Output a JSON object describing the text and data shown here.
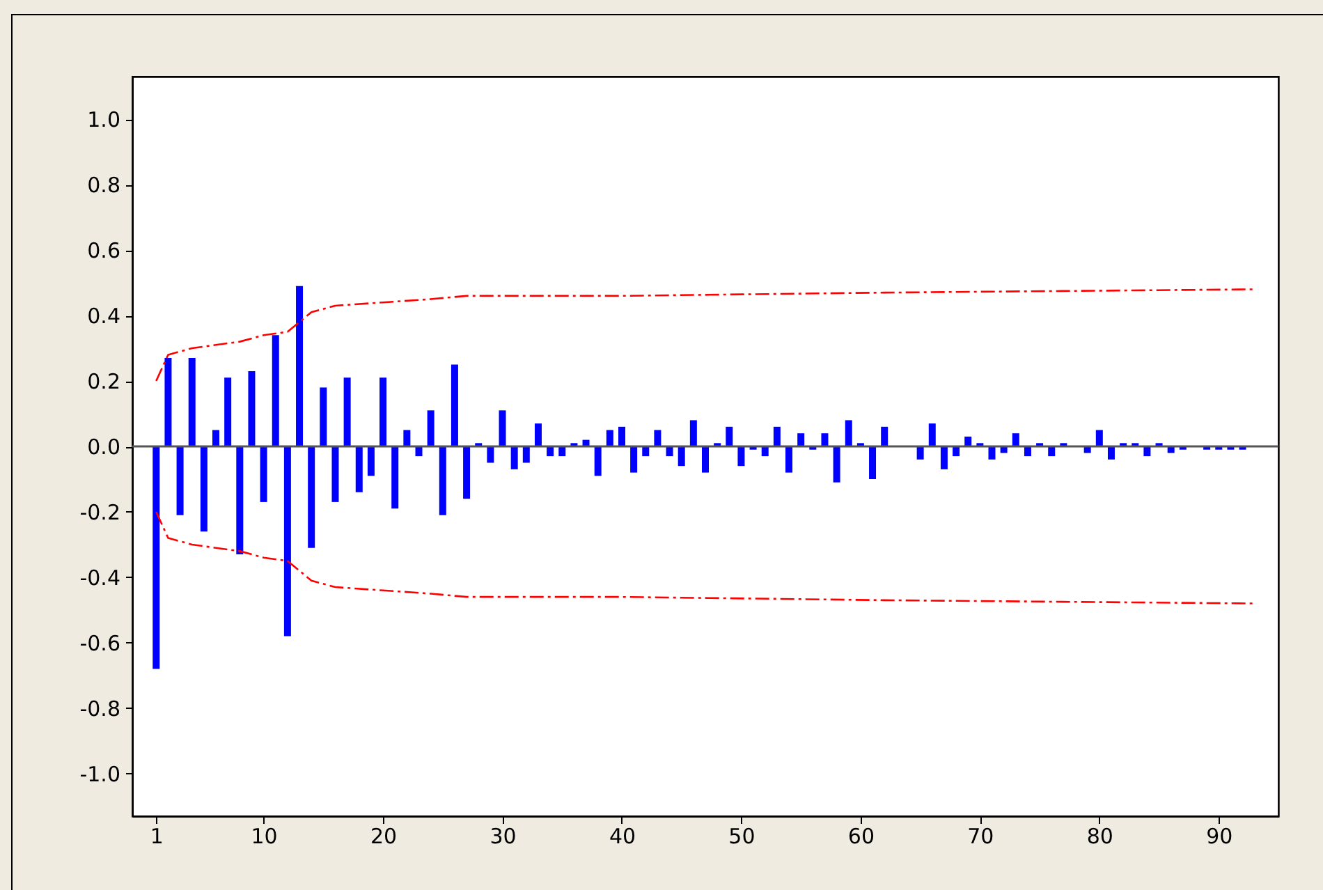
{
  "chart_data": {
    "type": "bar",
    "x": [
      1,
      2,
      3,
      4,
      5,
      6,
      7,
      8,
      9,
      10,
      11,
      12,
      13,
      14,
      15,
      16,
      17,
      18,
      19,
      20,
      21,
      22,
      23,
      24,
      25,
      26,
      27,
      28,
      29,
      30,
      31,
      32,
      33,
      34,
      35,
      36,
      37,
      38,
      39,
      40,
      41,
      42,
      43,
      44,
      45,
      46,
      47,
      48,
      49,
      50,
      51,
      52,
      53,
      54,
      55,
      56,
      57,
      58,
      59,
      60,
      61,
      62,
      63,
      64,
      65,
      66,
      67,
      68,
      69,
      70,
      71,
      72,
      73,
      74,
      75,
      76,
      77,
      78,
      79,
      80,
      81,
      82,
      83,
      84,
      85,
      86,
      87,
      88,
      89,
      90,
      91,
      92,
      93
    ],
    "series": [
      {
        "color": "#0000ff",
        "values": [
          -0.68,
          0.27,
          -0.21,
          0.27,
          -0.26,
          0.05,
          0.21,
          -0.33,
          0.23,
          -0.17,
          0.34,
          -0.58,
          0.49,
          -0.31,
          0.18,
          -0.17,
          0.21,
          -0.14,
          -0.09,
          0.21,
          -0.19,
          0.05,
          -0.03,
          0.11,
          -0.21,
          0.25,
          -0.16,
          0.01,
          -0.05,
          0.11,
          -0.07,
          -0.05,
          0.07,
          -0.03,
          -0.03,
          0.01,
          0.02,
          -0.09,
          0.05,
          0.06,
          -0.08,
          -0.03,
          0.05,
          -0.03,
          -0.06,
          0.08,
          -0.08,
          0.01,
          0.06,
          -0.06,
          -0.01,
          -0.03,
          0.06,
          -0.08,
          0.04,
          -0.01,
          0.04,
          -0.11,
          0.08,
          0.01,
          -0.1,
          0.06,
          0.0,
          0.0,
          -0.04,
          0.07,
          -0.07,
          -0.03,
          0.03,
          0.01,
          -0.04,
          -0.02,
          0.04,
          -0.03,
          0.01,
          -0.03,
          0.01,
          0.0,
          -0.02,
          0.05,
          -0.04,
          0.01,
          0.01,
          -0.03,
          0.01,
          -0.02,
          -0.01,
          0.0,
          -0.01,
          -0.01,
          -0.01,
          -0.01,
          0.0
        ]
      },
      {
        "type": "line",
        "color": "#ff0000",
        "line_style": "dashed",
        "x": [
          1,
          2,
          4,
          6,
          8,
          10,
          12,
          14,
          16,
          20,
          24,
          27,
          40,
          62,
          93
        ],
        "values": [
          0.2,
          0.28,
          0.3,
          0.31,
          0.32,
          0.34,
          0.35,
          0.41,
          0.43,
          0.44,
          0.45,
          0.46,
          0.46,
          0.47,
          0.48
        ]
      },
      {
        "type": "line",
        "color": "#ff0000",
        "line_style": "dashed",
        "x": [
          1,
          2,
          4,
          6,
          8,
          10,
          12,
          14,
          16,
          20,
          24,
          27,
          40,
          62,
          93
        ],
        "values": [
          -0.2,
          -0.28,
          -0.3,
          -0.31,
          -0.32,
          -0.34,
          -0.35,
          -0.41,
          -0.43,
          -0.44,
          -0.45,
          -0.46,
          -0.46,
          -0.47,
          -0.48
        ]
      }
    ],
    "xlim": [
      -1,
      95
    ],
    "xticks": [
      1,
      10,
      20,
      30,
      40,
      50,
      60,
      70,
      80,
      90
    ],
    "ylim": [
      -1.13,
      1.13
    ],
    "yticks": [
      {
        "value": -1,
        "label": "-1.0"
      },
      -0.8,
      -0.6,
      -0.4,
      -0.2,
      {
        "value": 0,
        "label": "0.0"
      },
      0.2,
      0.4,
      0.6,
      0.8,
      {
        "value": 1,
        "label": "1.0"
      }
    ],
    "ref_lines": [
      {
        "axis": "y",
        "value": 0,
        "color": "#555555"
      }
    ]
  }
}
